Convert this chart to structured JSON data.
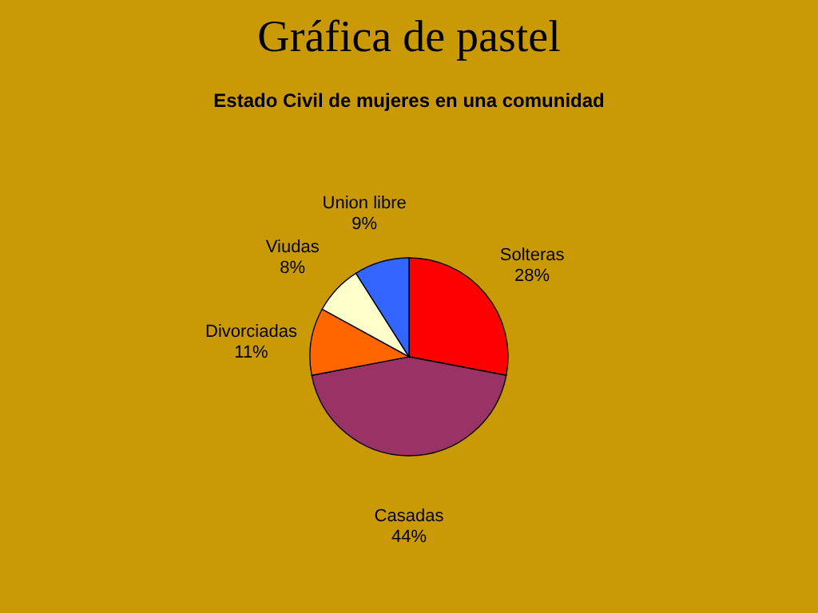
{
  "chart_data": {
    "type": "pie",
    "title": "Gráfica de pastel",
    "subtitle": "Estado Civil de mujeres en una comunidad",
    "categories": [
      "Solteras",
      "Casadas",
      "Divorciadas",
      "Viudas",
      "Union libre"
    ],
    "values": [
      28,
      44,
      11,
      8,
      9
    ],
    "colors": [
      "#ff0000",
      "#993366",
      "#ff6600",
      "#ffffcc",
      "#3366ff"
    ],
    "value_labels": [
      "28%",
      "44%",
      "11%",
      "8%",
      "9%"
    ],
    "legend": false
  }
}
